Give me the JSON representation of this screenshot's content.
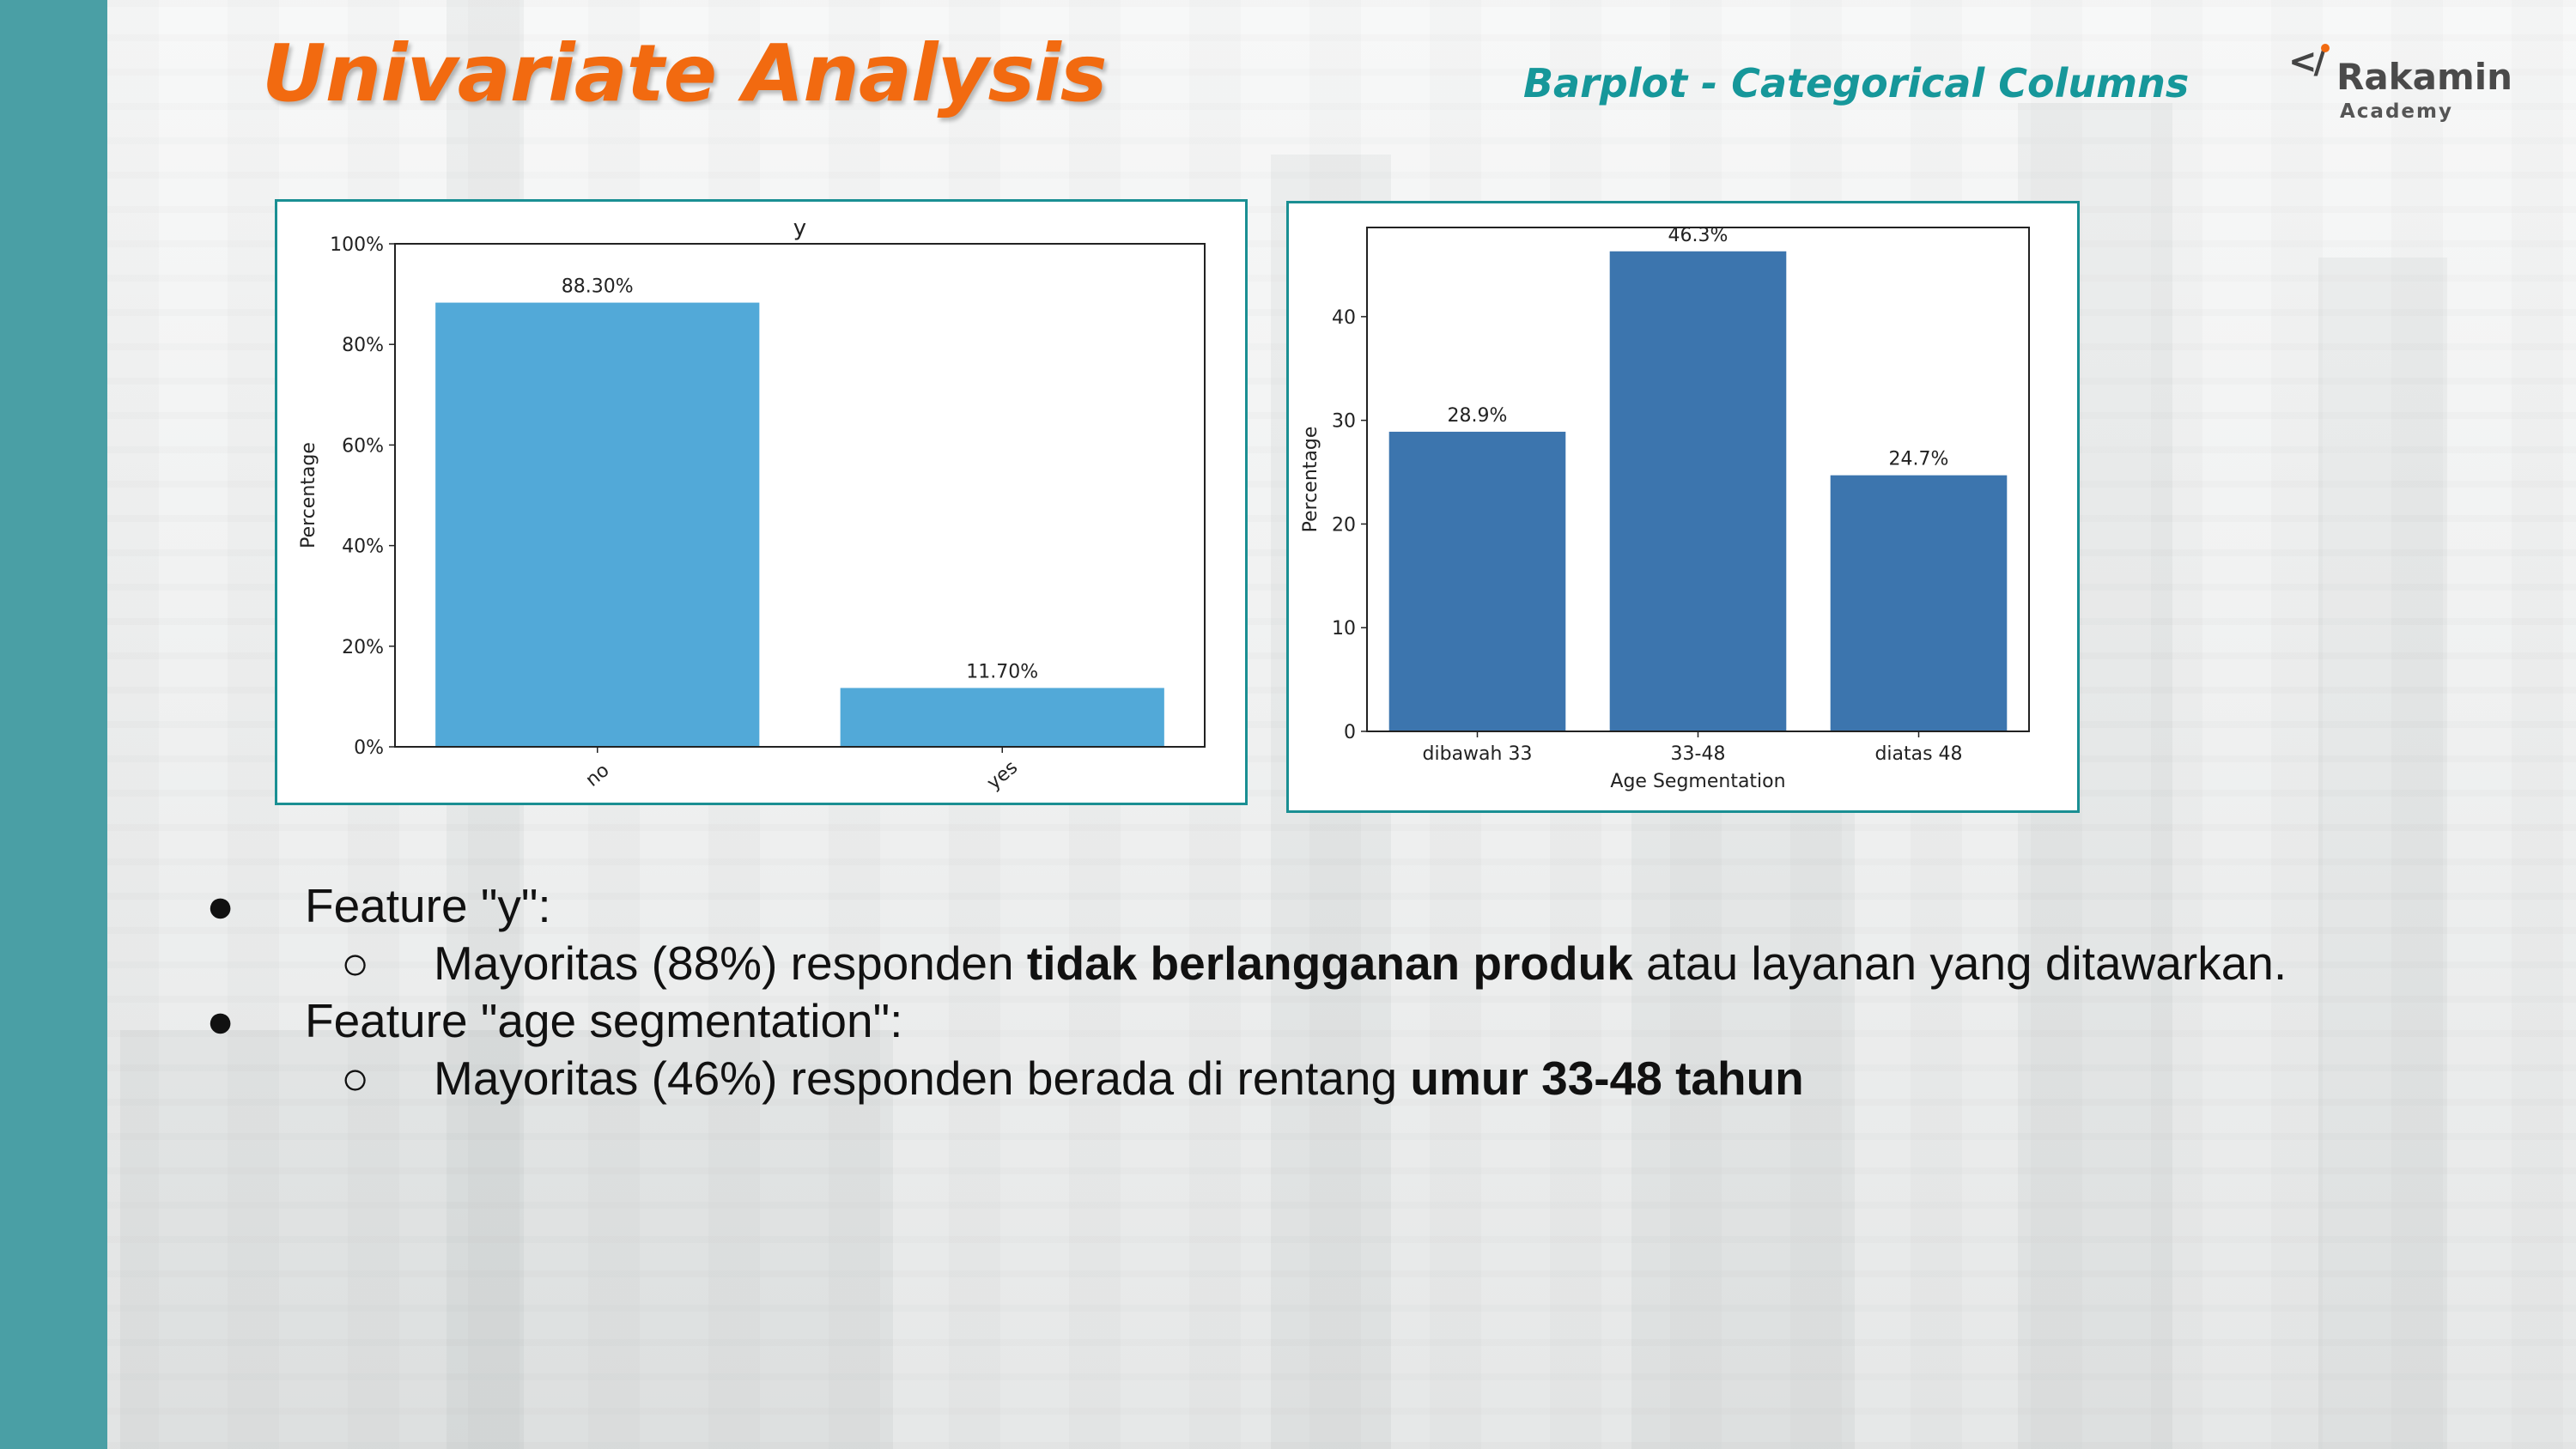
{
  "header": {
    "title": "Univariate Analysis",
    "subtitle": "Barplot - Categorical Columns"
  },
  "logo": {
    "mark": "</",
    "name": "Rakamin",
    "sub": "Academy"
  },
  "colors": {
    "sidebar": "#4a9fa5",
    "title": "#f26a10",
    "subtitle": "#16979a",
    "frame": "#1a8f93",
    "bar_chart1": "#52a9d8",
    "bar_chart2": "#3c75ae"
  },
  "chart_data": [
    {
      "type": "bar",
      "title": "y",
      "xlabel": "",
      "ylabel": "Percentage",
      "categories": [
        "no",
        "yes"
      ],
      "values": [
        88.3,
        11.7
      ],
      "data_labels": [
        "88.30%",
        "11.70%"
      ],
      "ylim": [
        0,
        100
      ],
      "yticks": [
        0,
        20,
        40,
        60,
        80,
        100
      ],
      "ytick_labels": [
        "0%",
        "20%",
        "40%",
        "60%",
        "80%",
        "100%"
      ],
      "xtick_rotation": "rotated",
      "grid": false
    },
    {
      "type": "bar",
      "title": "",
      "xlabel": "Age Segmentation",
      "ylabel": "Percentage",
      "categories": [
        "dibawah 33",
        "33-48",
        "diatas 48"
      ],
      "values": [
        28.9,
        46.3,
        24.7
      ],
      "data_labels": [
        "28.9%",
        "46.3%",
        "24.7%"
      ],
      "ylim": [
        0,
        48.6
      ],
      "yticks": [
        0,
        10,
        20,
        30,
        40
      ],
      "ytick_labels": [
        "0",
        "10",
        "20",
        "30",
        "40"
      ],
      "grid": false
    }
  ],
  "bullets": [
    {
      "level": 1,
      "marker": "●",
      "parts": [
        {
          "text": "Feature \"y\":",
          "bold": false
        }
      ]
    },
    {
      "level": 2,
      "marker": "○",
      "parts": [
        {
          "text": "Mayoritas (88%) responden ",
          "bold": false
        },
        {
          "text": "tidak berlangganan produk",
          "bold": true
        },
        {
          "text": " atau layanan yang ditawarkan.",
          "bold": false
        }
      ]
    },
    {
      "level": 1,
      "marker": "●",
      "parts": [
        {
          "text": "Feature \"age segmentation\":",
          "bold": false
        }
      ]
    },
    {
      "level": 2,
      "marker": "○",
      "parts": [
        {
          "text": "Mayoritas (46%) responden berada di rentang ",
          "bold": false
        },
        {
          "text": "umur 33-48 tahun",
          "bold": true
        }
      ]
    }
  ]
}
